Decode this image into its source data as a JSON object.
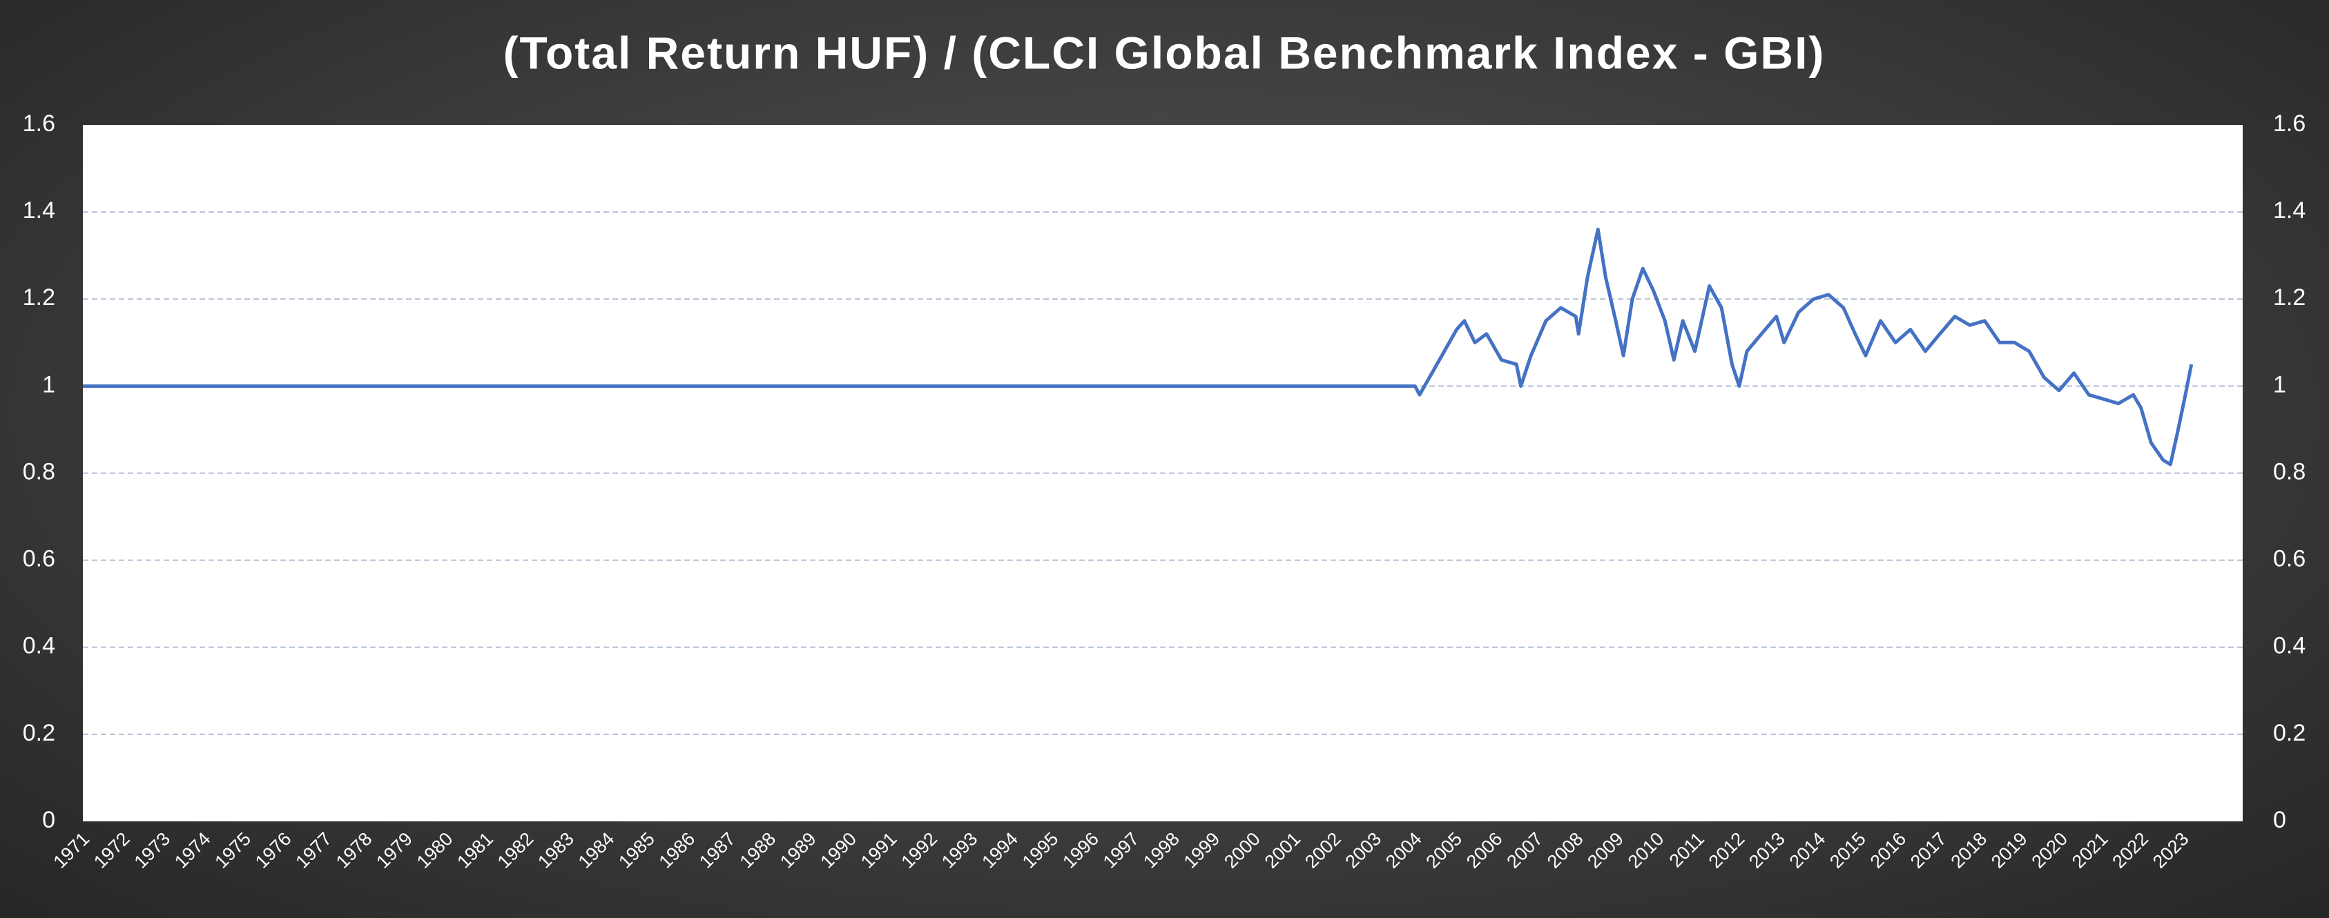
{
  "chart_data": {
    "type": "line",
    "title": "(Total Return HUF) / (CLCI Global Benchmark Index - GBI)",
    "color": "#4472c4",
    "grid": true,
    "x": [
      1971,
      2004.0,
      2004.11,
      2004.48,
      2005.03,
      2005.22,
      2005.48,
      2005.77,
      2006.14,
      2006.51,
      2006.62,
      2006.87,
      2007.24,
      2007.61,
      2007.98,
      2008.05,
      2008.27,
      2008.53,
      2008.72,
      2008.97,
      2009.16,
      2009.38,
      2009.64,
      2009.9,
      2010.19,
      2010.41,
      2010.63,
      2010.93,
      2011.29,
      2011.59,
      2011.85,
      2012.03,
      2012.22,
      2012.58,
      2012.95,
      2013.14,
      2013.5,
      2013.87,
      2014.24,
      2014.61,
      2014.9,
      2015.16,
      2015.53,
      2015.9,
      2016.27,
      2016.64,
      2017.0,
      2017.37,
      2017.74,
      2018.11,
      2018.48,
      2018.85,
      2019.21,
      2019.58,
      2019.95,
      2020.32,
      2020.69,
      2021.06,
      2021.42,
      2021.79,
      2021.98,
      2022.23,
      2022.53,
      2022.71,
      2022.9,
      2023.08,
      2023.23
    ],
    "values": [
      1.0,
      1.0,
      0.98,
      1.04,
      1.13,
      1.15,
      1.1,
      1.12,
      1.06,
      1.05,
      1.0,
      1.07,
      1.15,
      1.18,
      1.16,
      1.12,
      1.25,
      1.36,
      1.25,
      1.15,
      1.07,
      1.2,
      1.27,
      1.22,
      1.15,
      1.06,
      1.15,
      1.08,
      1.23,
      1.18,
      1.05,
      1.0,
      1.08,
      1.12,
      1.16,
      1.1,
      1.17,
      1.2,
      1.21,
      1.18,
      1.12,
      1.07,
      1.15,
      1.1,
      1.13,
      1.08,
      1.12,
      1.16,
      1.14,
      1.15,
      1.1,
      1.1,
      1.08,
      1.02,
      0.99,
      1.03,
      0.98,
      0.97,
      0.96,
      0.98,
      0.95,
      0.87,
      0.83,
      0.82,
      0.9,
      0.98,
      1.05
    ],
    "xlim": [
      1971,
      2024.5
    ],
    "xticks": [
      1971,
      1972,
      1973,
      1974,
      1975,
      1976,
      1977,
      1978,
      1979,
      1980,
      1981,
      1982,
      1983,
      1984,
      1985,
      1986,
      1987,
      1988,
      1989,
      1990,
      1991,
      1992,
      1993,
      1994,
      1995,
      1996,
      1997,
      1998,
      1999,
      2000,
      2001,
      2002,
      2003,
      2004,
      2005,
      2006,
      2007,
      2008,
      2009,
      2010,
      2011,
      2012,
      2013,
      2014,
      2015,
      2016,
      2017,
      2018,
      2019,
      2020,
      2021,
      2022,
      2023
    ],
    "ylim": [
      0,
      1.6
    ],
    "yticks": [
      0,
      0.2,
      0.4,
      0.6,
      0.8,
      1,
      1.2,
      1.4,
      1.6
    ],
    "y2lim": [
      0,
      1.6
    ],
    "y2ticks": [
      0,
      0.2,
      0.4,
      0.6,
      0.8,
      1,
      1.2,
      1.4,
      1.6
    ]
  }
}
